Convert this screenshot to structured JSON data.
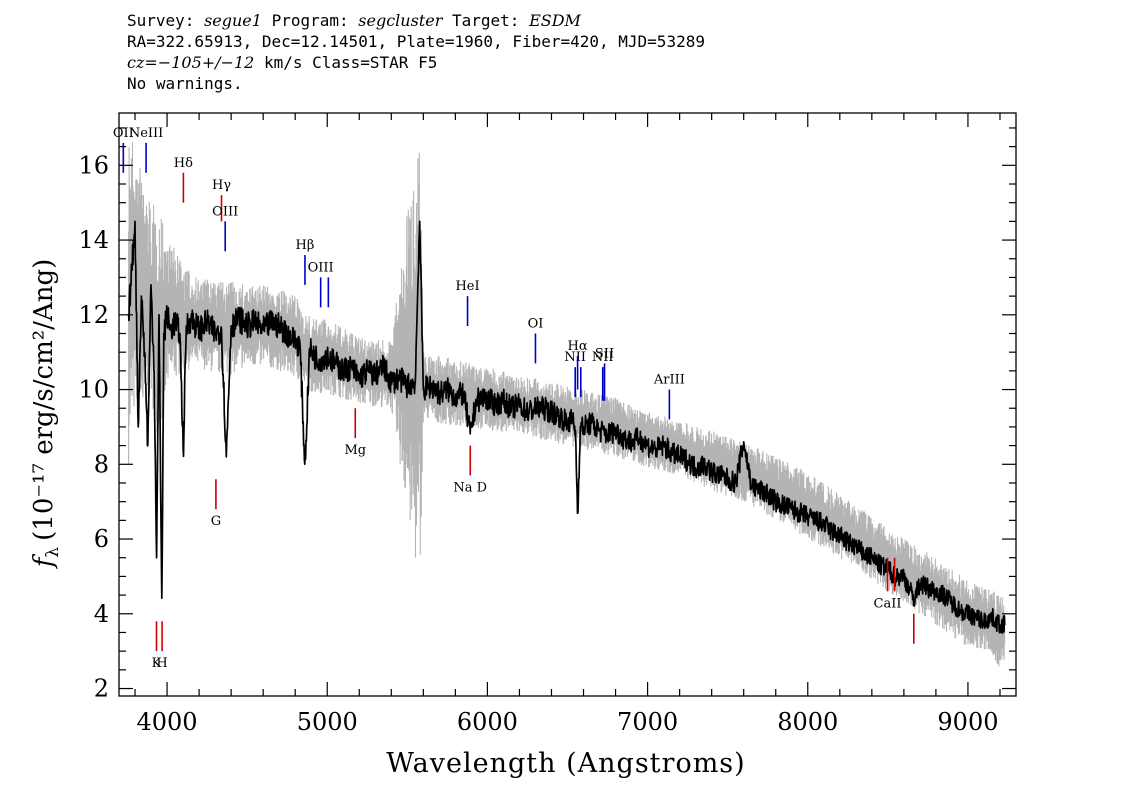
{
  "header": {
    "survey_label": "Survey:",
    "survey": "segue1",
    "program_label": "Program:",
    "program": "segcluster",
    "target_label": "Target:",
    "target": "ESDM",
    "line2": "RA=322.65913, Dec=12.14501, Plate=1960, Fiber=420, MJD=53289",
    "cz_label": "cz=",
    "cz_value": "−105+/−12",
    "cz_rest": " km/s Class=STAR F5",
    "line4": "No warnings."
  },
  "chart_data": {
    "type": "line",
    "xlabel": "Wavelength (Angstroms)",
    "ylabel": "(10⁻¹⁷ erg/s/cm²/Ang)",
    "ylabel_symbol": "f",
    "ylabel_sub": "λ",
    "xlim": [
      3700,
      9300
    ],
    "ylim": [
      1.8,
      17.4
    ],
    "x_ticks": [
      4000,
      5000,
      6000,
      7000,
      8000,
      9000
    ],
    "y_ticks": [
      2,
      4,
      6,
      8,
      10,
      12,
      14,
      16
    ],
    "grid": false,
    "series": [
      {
        "style": "flux",
        "color": "#000000",
        "x": [
          3760,
          3780,
          3800,
          3820,
          3840,
          3860,
          3880,
          3900,
          3920,
          3935,
          3950,
          3968,
          3980,
          4000,
          4020,
          4050,
          4080,
          4101,
          4120,
          4150,
          4200,
          4250,
          4300,
          4340,
          4370,
          4400,
          4450,
          4500,
          4550,
          4600,
          4650,
          4700,
          4750,
          4800,
          4830,
          4861,
          4890,
          4920,
          4950,
          5000,
          5050,
          5100,
          5150,
          5200,
          5250,
          5300,
          5350,
          5400,
          5450,
          5500,
          5550,
          5577,
          5600,
          5650,
          5700,
          5750,
          5800,
          5850,
          5893,
          5930,
          5980,
          6050,
          6100,
          6150,
          6200,
          6250,
          6300,
          6350,
          6400,
          6450,
          6500,
          6530,
          6550,
          6563,
          6580,
          6600,
          6650,
          6700,
          6750,
          6800,
          6850,
          6900,
          6950,
          7000,
          7050,
          7100,
          7150,
          7200,
          7250,
          7300,
          7350,
          7400,
          7450,
          7500,
          7550,
          7600,
          7650,
          7700,
          7750,
          7800,
          7850,
          7900,
          7950,
          8000,
          8050,
          8100,
          8150,
          8200,
          8250,
          8300,
          8350,
          8400,
          8450,
          8498,
          8542,
          8600,
          8662,
          8700,
          8750,
          8800,
          8850,
          8900,
          8950,
          9000,
          9050,
          9100,
          9150,
          9200,
          9230
        ],
        "y": [
          12.0,
          13.2,
          14.5,
          9.0,
          12.5,
          11.0,
          8.5,
          12.8,
          10.5,
          5.5,
          12.0,
          4.2,
          11.5,
          12.0,
          11.6,
          11.8,
          11.5,
          8.3,
          11.7,
          11.9,
          11.6,
          11.8,
          11.5,
          11.6,
          8.2,
          11.7,
          11.9,
          11.7,
          11.8,
          11.6,
          11.8,
          11.7,
          11.5,
          11.3,
          11.2,
          7.9,
          11.1,
          10.9,
          10.8,
          10.9,
          10.7,
          10.5,
          10.6,
          10.3,
          10.5,
          10.4,
          10.6,
          10.2,
          10.3,
          10.1,
          10.2,
          14.6,
          10.0,
          10.1,
          9.9,
          10.0,
          9.8,
          9.9,
          8.8,
          9.7,
          9.8,
          9.6,
          9.7,
          9.5,
          9.6,
          9.4,
          9.5,
          9.5,
          9.4,
          9.3,
          9.1,
          9.2,
          8.9,
          6.6,
          9.0,
          9.0,
          9.1,
          8.9,
          8.8,
          8.9,
          8.7,
          8.6,
          8.7,
          8.5,
          8.4,
          8.5,
          8.3,
          8.2,
          8.1,
          7.9,
          8.0,
          7.8,
          7.7,
          7.6,
          7.5,
          8.6,
          7.4,
          7.3,
          7.2,
          7.0,
          6.9,
          6.8,
          6.7,
          6.6,
          6.5,
          6.4,
          6.2,
          6.1,
          5.9,
          5.8,
          5.6,
          5.5,
          5.3,
          5.2,
          5.0,
          5.0,
          4.4,
          4.8,
          4.7,
          4.6,
          4.5,
          4.3,
          4.1,
          4.0,
          3.9,
          3.8,
          3.9,
          3.7,
          3.7
        ]
      },
      {
        "style": "noise",
        "color": "#b4b4b4",
        "x": [
          3760,
          3800,
          3850,
          3900,
          3950,
          4000,
          4100,
          4200,
          4300,
          4400,
          4500,
          4600,
          4700,
          4800,
          4900,
          5000,
          5200,
          5400,
          5577,
          5600,
          5800,
          6000,
          6200,
          6400,
          6600,
          6800,
          7000,
          7200,
          7400,
          7600,
          7800,
          8000,
          8200,
          8400,
          8600,
          8800,
          9000,
          9100,
          9200,
          9230
        ],
        "y_low": [
          8.0,
          9.5,
          9.0,
          9.8,
          8.5,
          10.0,
          10.5,
          10.6,
          10.4,
          10.4,
          10.6,
          10.6,
          10.5,
          10.3,
          9.9,
          9.9,
          9.6,
          9.5,
          4.5,
          9.2,
          9.0,
          8.9,
          8.8,
          8.6,
          8.4,
          8.2,
          7.9,
          7.7,
          7.3,
          7.0,
          6.5,
          6.0,
          5.5,
          4.9,
          4.3,
          3.7,
          3.1,
          3.0,
          2.5,
          2.5
        ],
        "y_high": [
          17.2,
          16.5,
          15.8,
          15.0,
          14.8,
          14.2,
          13.3,
          13.0,
          12.9,
          12.9,
          12.8,
          12.8,
          12.7,
          12.5,
          11.9,
          11.9,
          11.4,
          11.3,
          17.4,
          11.0,
          10.8,
          10.6,
          10.4,
          10.2,
          10.0,
          9.8,
          9.4,
          9.2,
          8.9,
          8.6,
          8.2,
          7.8,
          7.2,
          6.6,
          6.0,
          5.5,
          4.9,
          4.7,
          4.6,
          4.6
        ]
      }
    ],
    "lines": [
      {
        "label": "OII",
        "x": 3727,
        "y_top": 16.6,
        "y_bot": 15.8,
        "color": "#0000cc",
        "side": "above"
      },
      {
        "label": "NeIII",
        "x": 3869,
        "y_top": 16.6,
        "y_bot": 15.8,
        "color": "#0000cc",
        "side": "above"
      },
      {
        "label": "Hδ",
        "x": 4102,
        "y_top": 15.8,
        "y_bot": 15.0,
        "color": "#cc0000",
        "side": "above"
      },
      {
        "label": "Hγ",
        "x": 4340,
        "y_top": 15.2,
        "y_bot": 14.5,
        "color": "#cc0000",
        "side": "above"
      },
      {
        "label": "OIII",
        "x": 4363,
        "y_top": 14.5,
        "y_bot": 13.7,
        "color": "#0000cc",
        "side": "above"
      },
      {
        "label": "Hβ",
        "x": 4861,
        "y_top": 13.6,
        "y_bot": 12.8,
        "color": "#0000cc",
        "side": "above"
      },
      {
        "label": "OIII",
        "x": 4959,
        "y_top": 13.0,
        "y_bot": 12.2,
        "color": "#0000cc",
        "side": "above"
      },
      {
        "label": "",
        "x": 5007,
        "y_top": 13.0,
        "y_bot": 12.2,
        "color": "#0000cc",
        "side": "above"
      },
      {
        "label": "HeI",
        "x": 5876,
        "y_top": 12.5,
        "y_bot": 11.7,
        "color": "#0000cc",
        "side": "above"
      },
      {
        "label": "OI",
        "x": 6300,
        "y_top": 11.5,
        "y_bot": 10.7,
        "color": "#0000cc",
        "side": "above"
      },
      {
        "label": "NII",
        "x": 6548,
        "y_top": 10.6,
        "y_bot": 9.8,
        "color": "#0000cc",
        "side": "above"
      },
      {
        "label": "Hα",
        "x": 6563,
        "y_top": 10.9,
        "y_bot": 10.0,
        "color": "#0000cc",
        "side": "above"
      },
      {
        "label": "",
        "x": 6583,
        "y_top": 10.6,
        "y_bot": 9.8,
        "color": "#0000cc",
        "side": "above"
      },
      {
        "label": "NII",
        "x": 6720,
        "y_top": 10.6,
        "y_bot": 9.7,
        "color": "#0000cc",
        "side": "above"
      },
      {
        "label": "SII",
        "x": 6731,
        "y_top": 10.7,
        "y_bot": 9.7,
        "color": "#0000cc",
        "side": "above"
      },
      {
        "label": "ArIII",
        "x": 7136,
        "y_top": 10.0,
        "y_bot": 9.2,
        "color": "#0000cc",
        "side": "above"
      },
      {
        "label": "Mg",
        "x": 5175,
        "y_top": 9.5,
        "y_bot": 8.7,
        "color": "#cc0000",
        "side": "below"
      },
      {
        "label": "G",
        "x": 4305,
        "y_top": 7.6,
        "y_bot": 6.8,
        "color": "#cc0000",
        "side": "below"
      },
      {
        "label": "Na D",
        "x": 5893,
        "y_top": 8.5,
        "y_bot": 7.7,
        "color": "#cc0000",
        "side": "below"
      },
      {
        "label": "K",
        "x": 3934,
        "y_top": 3.8,
        "y_bot": 3.0,
        "color": "#cc0000",
        "side": "below"
      },
      {
        "label": "H",
        "x": 3969,
        "y_top": 3.8,
        "y_bot": 3.0,
        "color": "#cc0000",
        "side": "below"
      },
      {
        "label": "CaII",
        "x": 8498,
        "y_top": 5.5,
        "y_bot": 4.6,
        "color": "#cc0000",
        "side": "below"
      },
      {
        "label": "",
        "x": 8542,
        "y_top": 5.5,
        "y_bot": 4.6,
        "color": "#cc0000",
        "side": "below"
      },
      {
        "label": "",
        "x": 8662,
        "y_top": 4.0,
        "y_bot": 3.2,
        "color": "#cc0000",
        "side": "below"
      }
    ]
  }
}
